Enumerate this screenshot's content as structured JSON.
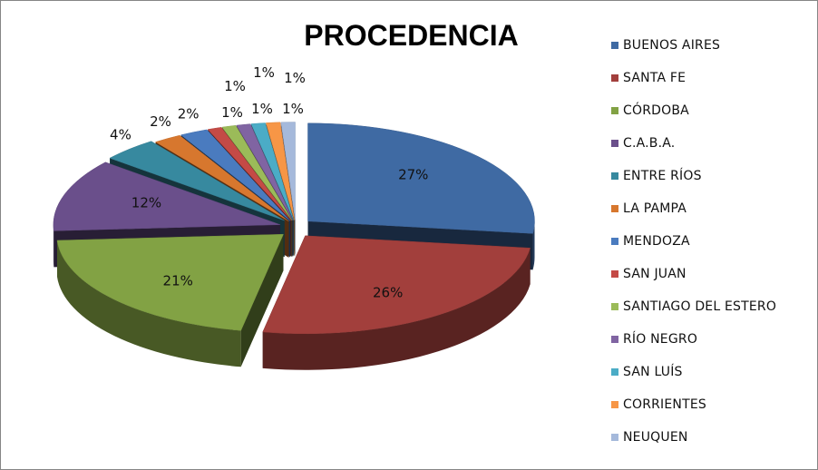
{
  "chart_data": {
    "type": "pie",
    "title": "PROCEDENCIA",
    "legend_position": "right",
    "slices": [
      {
        "label": "BUENOS AIRES",
        "value": 27,
        "value_label": "27%",
        "color": "#3f6aa3"
      },
      {
        "label": "SANTA FE",
        "value": 26,
        "value_label": "26%",
        "color": "#a23f3c"
      },
      {
        "label": "CÓRDOBA",
        "value": 21,
        "value_label": "21%",
        "color": "#82a244"
      },
      {
        "label": "C.A.B.A.",
        "value": 12,
        "value_label": "12%",
        "color": "#6a4f8b"
      },
      {
        "label": "ENTRE RÍOS",
        "value": 4,
        "value_label": "4%",
        "color": "#37899f"
      },
      {
        "label": "LA PAMPA",
        "value": 2,
        "value_label": "2%",
        "color": "#d7772e"
      },
      {
        "label": "MENDOZA",
        "value": 2,
        "value_label": "2%",
        "color": "#4a7bbf"
      },
      {
        "label": "SAN JUAN",
        "value": 1,
        "value_label": "1%",
        "color": "#c44a46"
      },
      {
        "label": "SANTIAGO DEL ESTERO",
        "value": 1,
        "value_label": "1%",
        "color": "#9bbb59"
      },
      {
        "label": "RÍO NEGRO",
        "value": 1,
        "value_label": "1%",
        "color": "#8064a2"
      },
      {
        "label": "SAN LUÍS",
        "value": 1,
        "value_label": "1%",
        "color": "#4bacc6"
      },
      {
        "label": "CORRIENTES",
        "value": 1,
        "value_label": "1%",
        "color": "#f79646"
      },
      {
        "label": "NEUQUEN",
        "value": 1,
        "value_label": "1%",
        "color": "#a5b9db"
      }
    ]
  }
}
